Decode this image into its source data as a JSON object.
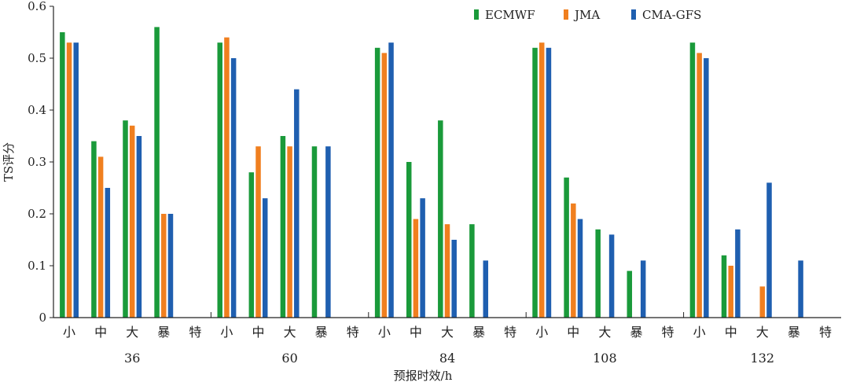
{
  "chart_data": {
    "type": "bar",
    "title": "",
    "xlabel": "预报时效/h",
    "ylabel": "TS评分",
    "ylim": [
      0,
      0.6
    ],
    "yticks": [
      "0",
      "0.1",
      "0.2",
      "0.3",
      "0.4",
      "0.5",
      "0.6"
    ],
    "groups": [
      "36",
      "60",
      "84",
      "108",
      "132"
    ],
    "categories": [
      "小",
      "中",
      "大",
      "暴",
      "特"
    ],
    "legend_position": "top-right",
    "series": [
      {
        "name": "ECMWF",
        "color": "#1a9a3a",
        "values": [
          [
            0.55,
            0.34,
            0.38,
            0.56,
            0
          ],
          [
            0.53,
            0.28,
            0.35,
            0.33,
            0
          ],
          [
            0.52,
            0.3,
            0.38,
            0.18,
            0
          ],
          [
            0.52,
            0.27,
            0.17,
            0.09,
            0
          ],
          [
            0.53,
            0.12,
            0,
            0,
            0
          ]
        ]
      },
      {
        "name": "JMA",
        "color": "#f07f1f",
        "values": [
          [
            0.53,
            0.31,
            0.37,
            0.2,
            0
          ],
          [
            0.54,
            0.33,
            0.33,
            0,
            0
          ],
          [
            0.51,
            0.19,
            0.18,
            0,
            0
          ],
          [
            0.53,
            0.22,
            0,
            0,
            0
          ],
          [
            0.51,
            0.1,
            0.06,
            0,
            0
          ]
        ]
      },
      {
        "name": "CMA-GFS",
        "color": "#1f5fb0",
        "values": [
          [
            0.53,
            0.25,
            0.35,
            0.2,
            0
          ],
          [
            0.5,
            0.23,
            0.44,
            0.33,
            0
          ],
          [
            0.53,
            0.23,
            0.15,
            0.11,
            0
          ],
          [
            0.52,
            0.19,
            0.16,
            0.11,
            0
          ],
          [
            0.5,
            0.17,
            0.26,
            0.11,
            0
          ]
        ]
      }
    ]
  }
}
